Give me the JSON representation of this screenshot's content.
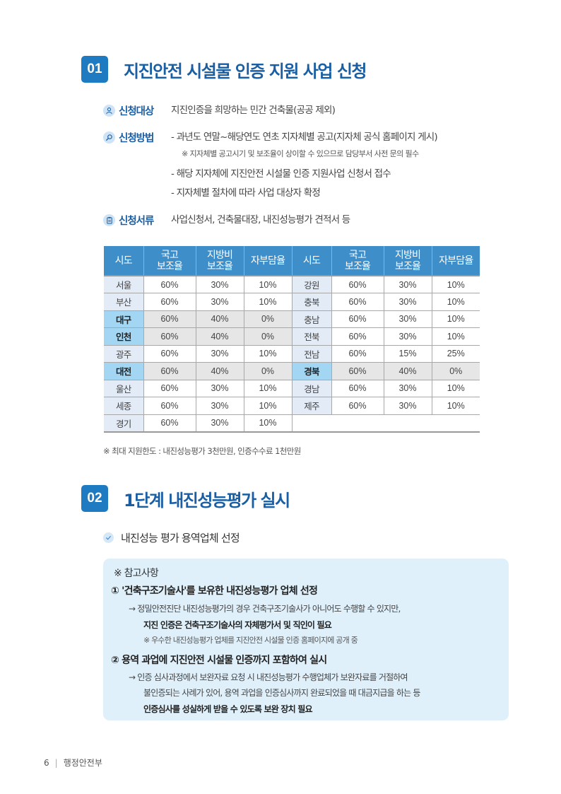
{
  "section1": {
    "number": "01",
    "title": "지진안전 시설물 인증 지원 사업 신청",
    "target": {
      "icon": "person-icon",
      "label": "신청대상",
      "value": "지진인증을 희망하는 민간 건축물(공공 제외)"
    },
    "method": {
      "icon": "search-icon",
      "label": "신청방법",
      "lines": [
        "- 과년도 연말~해당연도 연초 지자체별 공고(지자체 공식 홈페이지 게시)",
        "※ 지자체별 공고시기 및 보조율이 상이할 수 있으므로 담당부서 사전 문의 필수",
        "- 해당 지자체에 지진안전 시설물 인증 지원사업 신청서 접수",
        "- 지자체별 절차에 따라 사업 대상자 확정"
      ]
    },
    "documents": {
      "icon": "clipboard-icon",
      "label": "신청서류",
      "value": "사업신청서, 건축물대장, 내진성능평가 견적서 등"
    },
    "table": {
      "headers": [
        "시도",
        "국고\n보조율",
        "지방비\n보조율",
        "자부담율",
        "시도",
        "국고\n보조율",
        "지방비\n보조율",
        "자부담율"
      ],
      "header_lines": [
        [
          "시도"
        ],
        [
          "국고",
          "보조율"
        ],
        [
          "지방비",
          "보조율"
        ],
        [
          "자부담율"
        ],
        [
          "시도"
        ],
        [
          "국고",
          "보조율"
        ],
        [
          "지방비",
          "보조율"
        ],
        [
          "자부담율"
        ]
      ],
      "rows": [
        {
          "left": [
            "서울",
            "60%",
            "30%",
            "10%"
          ],
          "right": [
            "강원",
            "60%",
            "30%",
            "10%"
          ],
          "hl_left": false,
          "hl_right": false
        },
        {
          "left": [
            "부산",
            "60%",
            "30%",
            "10%"
          ],
          "right": [
            "충북",
            "60%",
            "30%",
            "10%"
          ],
          "hl_left": false,
          "hl_right": false
        },
        {
          "left": [
            "대구",
            "60%",
            "40%",
            "0%"
          ],
          "right": [
            "충남",
            "60%",
            "30%",
            "10%"
          ],
          "hl_left": true,
          "hl_right": false
        },
        {
          "left": [
            "인천",
            "60%",
            "40%",
            "0%"
          ],
          "right": [
            "전북",
            "60%",
            "30%",
            "10%"
          ],
          "hl_left": true,
          "hl_right": false
        },
        {
          "left": [
            "광주",
            "60%",
            "30%",
            "10%"
          ],
          "right": [
            "전남",
            "60%",
            "15%",
            "25%"
          ],
          "hl_left": false,
          "hl_right": false
        },
        {
          "left": [
            "대전",
            "60%",
            "40%",
            "0%"
          ],
          "right": [
            "경북",
            "60%",
            "40%",
            "0%"
          ],
          "hl_left": true,
          "hl_right": true
        },
        {
          "left": [
            "울산",
            "60%",
            "30%",
            "10%"
          ],
          "right": [
            "경남",
            "60%",
            "30%",
            "10%"
          ],
          "hl_left": false,
          "hl_right": false
        },
        {
          "left": [
            "세종",
            "60%",
            "30%",
            "10%"
          ],
          "right": [
            "제주",
            "60%",
            "30%",
            "10%"
          ],
          "hl_left": false,
          "hl_right": false
        },
        {
          "left": [
            "경기",
            "60%",
            "30%",
            "10%"
          ],
          "right": null,
          "hl_left": false,
          "hl_right": false
        }
      ]
    },
    "footnote": "※ 최대 지원한도 : 내진성능평가 3천만원, 인증수수료 1천만원"
  },
  "section2": {
    "number": "02",
    "title": "1단계 내진성능평가 실시",
    "check_item": "내진성능 평가 용역업체 선정",
    "reference": {
      "title": "※ 참고사항",
      "item1": {
        "heading": "① '건축구조기술사'를 보유한 내진성능평가 업체 선정",
        "body": "→ 정밀안전진단 내진성능평가의 경우 건축구조기술사가 아니어도 수행할 수 있지만,",
        "bold": "지진 인증은 건축구조기술사의 자체평가서 및 직인이 필요",
        "note": "※ 우수한 내진성능평가 업체를 지진안전 시설물 인증 홈페이지에 공개 중"
      },
      "item2": {
        "heading": "② 용역 과업에 지진안전 시설물 인증까지 포함하여 실시",
        "body1": "→ 인증 심사과정에서 보완자료 요청 시 내진성능평가 수행업체가 보완자료를 거절하여",
        "body2": "불인증되는 사례가 있어, 용역 과업을 인증심사까지 완료되었을 때 대금지급을 하는 등",
        "bold": "인증심사를 성실하게 받을 수 있도록 보완 장치 필요"
      }
    }
  },
  "footer": {
    "page_number": "6",
    "separator": "|",
    "organization": "행정안전부"
  },
  "colors": {
    "accent": "#1f7bc1",
    "title": "#1a5ea3",
    "table_header": "#3d8ec9",
    "highlight_sido": "#a3d6f2",
    "highlight_row": "#e6e6e6",
    "sido_bg": "#e3ebf6",
    "reference_box": "#dff0fb"
  }
}
